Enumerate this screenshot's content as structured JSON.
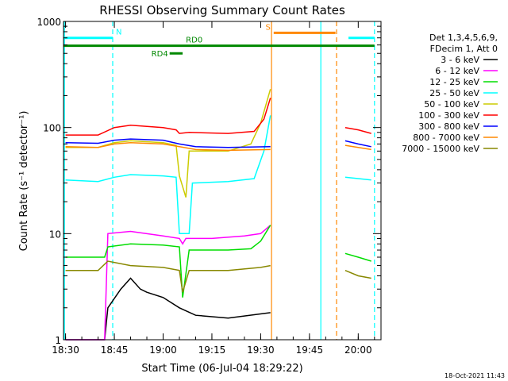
{
  "chart_data": {
    "type": "line",
    "title": "RHESSI Observing Summary Count Rates",
    "xlabel": "Start Time (06-Jul-04 18:29:22)",
    "ylabel": "Count Rate (s⁻¹ detector⁻¹)",
    "yscale": "log",
    "ylim": [
      1,
      1000
    ],
    "xlim": [
      "18:29:22",
      "20:07:00"
    ],
    "y_ticks": [
      "1",
      "10",
      "100",
      "1000"
    ],
    "x_ticks": [
      "18:30",
      "18:45",
      "19:00",
      "19:15",
      "19:30",
      "19:45",
      "20:00"
    ],
    "legend_title_lines": [
      "Det 1,3,4,5,6,9,",
      "FDecim 1, Att 0"
    ],
    "legend_position": "right",
    "timestamp": "18-Oct-2021 11:43",
    "series": [
      {
        "name": "3 - 6 keV",
        "color": "#000000",
        "x": [
          "18:30",
          "18:42",
          "18:43",
          "18:47",
          "18:50",
          "18:53",
          "18:55",
          "19:00",
          "19:05",
          "19:10",
          "19:20",
          "19:33"
        ],
        "y": [
          1,
          1,
          2,
          3,
          3.8,
          3,
          2.8,
          2.5,
          2,
          1.7,
          1.6,
          1.8
        ]
      },
      {
        "name": "6 - 12 keV",
        "color": "#ff00ff",
        "x": [
          "18:30",
          "18:42",
          "18:43",
          "18:50",
          "19:00",
          "19:05",
          "19:06",
          "19:07",
          "19:15",
          "19:25",
          "19:30",
          "19:33"
        ],
        "y": [
          1,
          1,
          10,
          10.5,
          9.5,
          9,
          8,
          9,
          9,
          9.5,
          10,
          12
        ]
      },
      {
        "name": "12 - 25 keV",
        "color": "#00dd00",
        "x": [
          "18:30",
          "18:42",
          "18:43",
          "18:50",
          "19:00",
          "19:05",
          "19:06",
          "19:08",
          "19:20",
          "19:27",
          "19:30",
          "19:33"
        ],
        "y": [
          6,
          6,
          7.5,
          8,
          7.8,
          7.5,
          2.5,
          7,
          7,
          7.2,
          8.5,
          12
        ]
      },
      {
        "name": "25 - 50 keV",
        "color": "#00ffff",
        "x": [
          "18:30",
          "18:40",
          "18:45",
          "18:50",
          "19:00",
          "19:04",
          "19:05",
          "19:08",
          "19:09",
          "19:20",
          "19:28",
          "19:31",
          "19:33"
        ],
        "y": [
          32,
          31,
          34,
          36,
          35,
          34,
          10,
          10,
          30,
          31,
          33,
          60,
          130
        ]
      },
      {
        "name": "50 - 100 keV",
        "color": "#cccc00",
        "x": [
          "18:30",
          "18:40",
          "18:45",
          "18:50",
          "19:00",
          "19:04",
          "19:05",
          "19:07",
          "19:08",
          "19:20",
          "19:27",
          "19:30",
          "19:33"
        ],
        "y": [
          65,
          65,
          72,
          75,
          72,
          68,
          35,
          22,
          60,
          60,
          70,
          110,
          230
        ]
      },
      {
        "name": "100 - 300 keV",
        "color": "#ff0000",
        "x": [
          "18:30",
          "18:40",
          "18:45",
          "18:50",
          "19:00",
          "19:04",
          "19:05",
          "19:08",
          "19:20",
          "19:28",
          "19:31",
          "19:33"
        ],
        "y": [
          85,
          85,
          100,
          105,
          100,
          95,
          88,
          90,
          88,
          92,
          120,
          190
        ]
      },
      {
        "name": "300 - 800 keV",
        "color": "#0000ff",
        "x": [
          "18:30",
          "18:40",
          "18:45",
          "18:50",
          "19:00",
          "19:05",
          "19:10",
          "19:20",
          "19:33"
        ],
        "y": [
          72,
          71,
          76,
          78,
          76,
          70,
          66,
          65,
          66
        ]
      },
      {
        "name": "800 - 7000 keV",
        "color": "#ff8800",
        "x": [
          "18:30",
          "18:40",
          "18:45",
          "18:50",
          "19:00",
          "19:05",
          "19:10",
          "19:20",
          "19:33"
        ],
        "y": [
          66,
          65,
          70,
          72,
          70,
          66,
          62,
          61,
          62
        ]
      },
      {
        "name": "7000 - 15000 keV",
        "color": "#888800",
        "x": [
          "18:30",
          "18:40",
          "18:43",
          "18:50",
          "19:00",
          "19:05",
          "19:06",
          "19:08",
          "19:20",
          "19:30",
          "19:33"
        ],
        "y": [
          4.5,
          4.5,
          5.5,
          5,
          4.8,
          4.5,
          2.8,
          4.5,
          4.5,
          4.8,
          5
        ]
      }
    ],
    "after_gap_series": [
      {
        "color": "#ff0000",
        "x": [
          "19:56",
          "20:00",
          "20:04"
        ],
        "y": [
          100,
          95,
          88
        ]
      },
      {
        "color": "#0000ff",
        "x": [
          "19:56",
          "20:00",
          "20:04"
        ],
        "y": [
          75,
          70,
          66
        ]
      },
      {
        "color": "#ff8800",
        "x": [
          "19:56",
          "20:00",
          "20:04"
        ],
        "y": [
          68,
          65,
          62
        ]
      },
      {
        "color": "#00ffff",
        "x": [
          "19:56",
          "20:00",
          "20:04"
        ],
        "y": [
          34,
          33,
          32
        ]
      },
      {
        "color": "#00dd00",
        "x": [
          "19:56",
          "20:00",
          "20:04"
        ],
        "y": [
          6.5,
          6,
          5.5
        ]
      },
      {
        "color": "#888800",
        "x": [
          "19:56",
          "20:00",
          "20:04"
        ],
        "y": [
          4.5,
          4,
          3.8
        ]
      }
    ],
    "flag_bars": [
      {
        "label": "N",
        "color": "#00ffff",
        "segments": [
          [
            "18:29:22",
            "18:44:30"
          ],
          [
            "19:57",
            "20:05"
          ]
        ],
        "y_level": 700
      },
      {
        "label": "S",
        "color": "#ff8800",
        "segments": [
          [
            "19:34",
            "19:53"
          ]
        ],
        "y_level": 780
      },
      {
        "label": "RD0",
        "color": "#008800",
        "segments": [
          [
            "18:29:22",
            "20:05"
          ]
        ],
        "y_level": 590
      },
      {
        "label": "RD4",
        "color": "#008800",
        "segments": [
          [
            "19:02",
            "19:06"
          ]
        ],
        "y_level": 500
      }
    ],
    "vertical_markers": [
      {
        "color": "#00ffff",
        "style": "solid",
        "x": "18:29:40"
      },
      {
        "color": "#00ffff",
        "style": "dashed",
        "x": "18:44:30"
      },
      {
        "color": "#ff8800",
        "style": "solid",
        "x": "19:33:20"
      },
      {
        "color": "#00ffff",
        "style": "solid",
        "x": "19:48:30"
      },
      {
        "color": "#ff8800",
        "style": "dashed",
        "x": "19:53:20"
      },
      {
        "color": "#00ffff",
        "style": "dashed",
        "x": "20:05:00"
      }
    ]
  }
}
